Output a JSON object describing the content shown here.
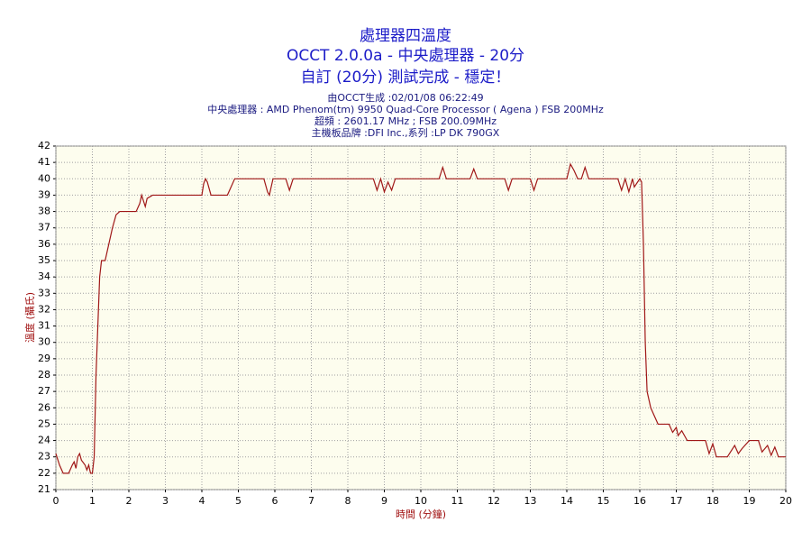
{
  "chart_data": {
    "type": "line",
    "title": "處理器四溫度",
    "subtitle": "OCCT 2.0.0a - 中央處理器 - 20分",
    "subtitle2": "自訂 (20分) 測試完成 - 穩定！",
    "info": [
      "由OCCT生成 :02/01/08 06:22:49",
      "中央處理器 : AMD Phenom(tm) 9950 Quad-Core Processor ( Agena ) FSB 200MHz",
      "超頻 : 2601.17 MHz ; FSB 200.09MHz",
      "主機板品牌 :DFI Inc.,系列 :LP DK 790GX"
    ],
    "x_label": "時間 (分鐘)",
    "y_label": "溫度 (攝氏)",
    "xlim": [
      0,
      20
    ],
    "ylim": [
      21,
      42
    ],
    "xticks": [
      0,
      1,
      2,
      3,
      4,
      5,
      6,
      7,
      8,
      9,
      10,
      11,
      12,
      13,
      14,
      15,
      16,
      17,
      18,
      19,
      20
    ],
    "yticks": [
      21,
      22,
      23,
      24,
      25,
      26,
      27,
      28,
      29,
      30,
      31,
      32,
      33,
      34,
      35,
      36,
      37,
      38,
      39,
      40,
      41,
      42
    ],
    "grid": true,
    "x": [
      0,
      0.1,
      0.2,
      0.35,
      0.45,
      0.5,
      0.55,
      0.6,
      0.65,
      0.7,
      0.8,
      0.85,
      0.9,
      0.95,
      1.0,
      1.05,
      1.1,
      1.2,
      1.25,
      1.35,
      1.45,
      1.55,
      1.65,
      1.75,
      2.2,
      2.3,
      2.35,
      2.45,
      2.5,
      2.65,
      4.0,
      4.05,
      4.1,
      4.15,
      4.25,
      4.7,
      4.9,
      5.7,
      5.8,
      5.85,
      5.95,
      6.3,
      6.4,
      6.5,
      8.7,
      8.8,
      8.9,
      9.0,
      9.05,
      9.1,
      9.2,
      9.3,
      10.5,
      10.6,
      10.7,
      11.35,
      11.45,
      11.55,
      12.3,
      12.4,
      12.5,
      13.0,
      13.1,
      13.2,
      14.0,
      14.1,
      14.2,
      14.3,
      14.4,
      14.5,
      14.6,
      15.4,
      15.5,
      15.6,
      15.7,
      15.8,
      15.85,
      16.0,
      16.05,
      16.1,
      16.15,
      16.2,
      16.3,
      16.4,
      16.5,
      16.8,
      16.9,
      17.0,
      17.05,
      17.15,
      17.3,
      17.8,
      17.9,
      18.0,
      18.1,
      18.4,
      18.6,
      18.7,
      18.8,
      19.0,
      19.25,
      19.35,
      19.5,
      19.6,
      19.7,
      19.8,
      20.0
    ],
    "series": [
      {
        "color": "#a01818",
        "values": [
          23.2,
          22.5,
          22,
          22,
          22.5,
          22.7,
          22.3,
          23,
          23.2,
          22.8,
          22.5,
          22.2,
          22.5,
          22,
          22,
          23,
          28,
          34,
          35,
          35,
          36,
          37,
          37.8,
          38,
          38,
          38.5,
          39,
          38.3,
          38.8,
          39,
          39,
          39.7,
          40,
          39.8,
          39,
          39,
          40,
          40,
          39.2,
          39,
          40,
          40,
          39.3,
          40,
          40,
          39.3,
          40,
          39.2,
          39.5,
          39.8,
          39.3,
          40,
          40,
          40.7,
          40,
          40,
          40.6,
          40,
          40,
          39.3,
          40,
          40,
          39.3,
          40,
          40,
          40.9,
          40.5,
          40,
          40,
          40.7,
          40,
          40,
          39.3,
          40,
          39.2,
          40,
          39.5,
          40,
          39.8,
          36,
          30,
          27,
          26,
          25.5,
          25,
          25,
          24.5,
          24.8,
          24.3,
          24.6,
          24,
          24,
          23.2,
          23.8,
          23,
          23,
          23.7,
          23.2,
          23.5,
          24,
          24,
          23.3,
          23.7,
          23.1,
          23.6,
          23,
          23
        ]
      }
    ]
  }
}
